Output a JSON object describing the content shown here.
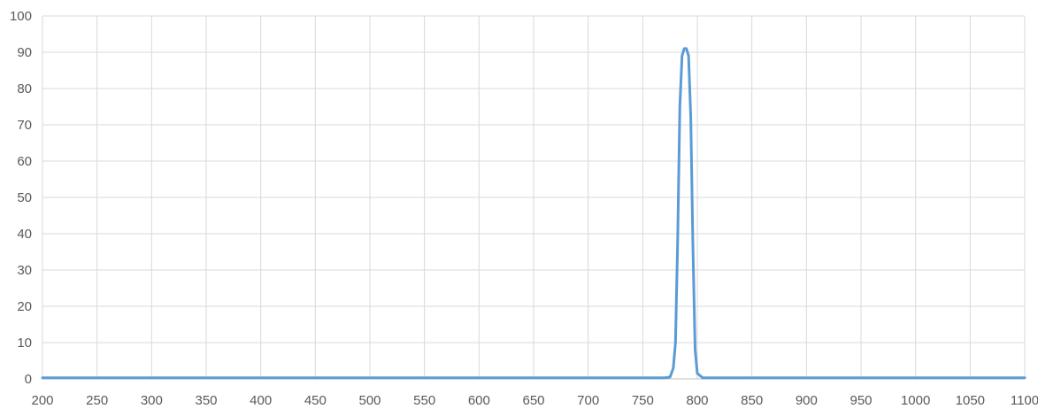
{
  "chart_data": {
    "type": "line",
    "title": "",
    "xlabel": "",
    "ylabel": "",
    "xlim": [
      200,
      1100
    ],
    "ylim": [
      0,
      100
    ],
    "x_ticks": [
      200,
      250,
      300,
      350,
      400,
      450,
      500,
      550,
      600,
      650,
      700,
      750,
      800,
      850,
      900,
      950,
      1000,
      1050,
      1100
    ],
    "y_ticks": [
      0,
      10,
      20,
      30,
      40,
      50,
      60,
      70,
      80,
      90,
      100
    ],
    "grid": true,
    "legend": "none",
    "series": [
      {
        "color": "#5b9bd5",
        "x": [
          200,
          250,
          300,
          400,
          500,
          600,
          700,
          750,
          770,
          775,
          778,
          780,
          782,
          784,
          786,
          788,
          790,
          792,
          794,
          796,
          798,
          800,
          805,
          850,
          900,
          1000,
          1100
        ],
        "y": [
          0.3,
          0.3,
          0.3,
          0.3,
          0.3,
          0.3,
          0.3,
          0.3,
          0.3,
          0.5,
          3,
          10,
          38,
          75,
          89,
          91,
          91,
          89,
          72,
          36,
          8,
          1.5,
          0.3,
          0.3,
          0.3,
          0.3,
          0.3
        ]
      }
    ]
  }
}
